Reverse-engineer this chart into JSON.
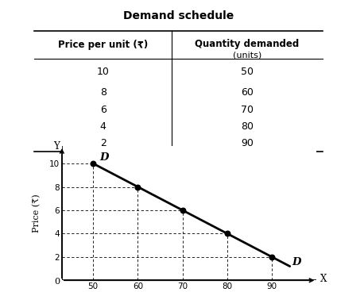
{
  "title": "Demand schedule",
  "table_headers": [
    "Price per unit (₹)",
    "Quantity demanded (units)"
  ],
  "prices": [
    10,
    8,
    6,
    4,
    2
  ],
  "quantities": [
    50,
    60,
    70,
    80,
    90
  ],
  "xlabel": "Quantity demanded (units)",
  "ylabel": "Price (₹)",
  "x_axis_label": "X",
  "y_axis_label": "Y",
  "xticks": [
    50,
    60,
    70,
    80,
    90
  ],
  "yticks": [
    2,
    4,
    6,
    8,
    10
  ],
  "xlim": [
    43,
    100
  ],
  "ylim": [
    0,
    11.5
  ],
  "line_color": "black",
  "dot_color": "black",
  "dashed_color": "black",
  "label_D_top": "D",
  "label_D_bottom": "D",
  "background": "white"
}
